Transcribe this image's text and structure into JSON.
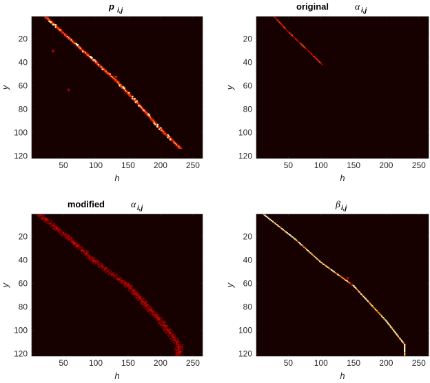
{
  "colors": {
    "background": "#160000",
    "colormap": [
      "#160000",
      "#5a0000",
      "#a80000",
      "#e01a00",
      "#ff6a00",
      "#ffc040",
      "#ffffe0"
    ]
  },
  "chart_data": [
    {
      "type": "heatmap",
      "title_main": "p",
      "title_sub": "i,j",
      "title_greek": "",
      "xlabel": "h",
      "ylabel": "y",
      "xlim": [
        1,
        265
      ],
      "ylim": [
        1,
        122
      ],
      "y_reversed": true,
      "xticks": [
        50,
        100,
        150,
        200,
        250
      ],
      "yticks": [
        20,
        40,
        60,
        80,
        100,
        120
      ],
      "path": [
        [
          22,
          1
        ],
        [
          40,
          10
        ],
        [
          80,
          30
        ],
        [
          130,
          55
        ],
        [
          160,
          72
        ],
        [
          200,
          97
        ],
        [
          230,
          113
        ]
      ],
      "path_intensity": 0.7,
      "extras": [
        [
          33,
          30,
          0.45
        ],
        [
          57,
          63,
          0.4
        ],
        [
          130,
          52,
          0.55
        ],
        [
          22,
          1,
          0.6
        ]
      ]
    },
    {
      "type": "heatmap",
      "title_main": "original",
      "title_sub": "i,j",
      "title_greek": "α",
      "xlabel": "h",
      "ylabel": "y",
      "xlim": [
        1,
        265
      ],
      "ylim": [
        1,
        122
      ],
      "y_reversed": true,
      "xticks": [
        50,
        100,
        150,
        200,
        250
      ],
      "yticks": [
        20,
        40,
        60,
        80,
        100,
        120
      ],
      "path": [
        [
          28,
          1
        ],
        [
          50,
          14
        ],
        [
          80,
          30
        ],
        [
          102,
          42
        ]
      ],
      "path_intensity": 0.45,
      "extras": []
    },
    {
      "type": "heatmap",
      "title_main": "modified",
      "title_sub": "i,j",
      "title_greek": "α",
      "xlabel": "h",
      "ylabel": "y",
      "xlim": [
        1,
        265
      ],
      "ylim": [
        1,
        122
      ],
      "y_reversed": true,
      "xticks": [
        50,
        100,
        150,
        200,
        250
      ],
      "yticks": [
        20,
        40,
        60,
        80,
        100,
        120
      ],
      "path": [
        [
          12,
          1
        ],
        [
          60,
          22
        ],
        [
          100,
          42
        ],
        [
          150,
          62
        ],
        [
          200,
          92
        ],
        [
          228,
          112
        ],
        [
          228,
          122
        ]
      ],
      "path_intensity": 0.32,
      "extras": []
    },
    {
      "type": "heatmap",
      "title_main": "",
      "title_sub": "i,j",
      "title_greek": "β",
      "xlabel": "h",
      "ylabel": "y",
      "xlim": [
        1,
        265
      ],
      "ylim": [
        1,
        122
      ],
      "y_reversed": true,
      "xticks": [
        50,
        100,
        150,
        200,
        250
      ],
      "yticks": [
        20,
        40,
        60,
        80,
        100,
        120
      ],
      "path": [
        [
          12,
          1
        ],
        [
          60,
          22
        ],
        [
          100,
          42
        ],
        [
          150,
          62
        ],
        [
          200,
          92
        ],
        [
          228,
          112
        ],
        [
          228,
          122
        ]
      ],
      "path_intensity": 0.85,
      "extras": [
        [
          140,
          55,
          0.45
        ],
        [
          145,
          60,
          0.35
        ]
      ]
    }
  ]
}
